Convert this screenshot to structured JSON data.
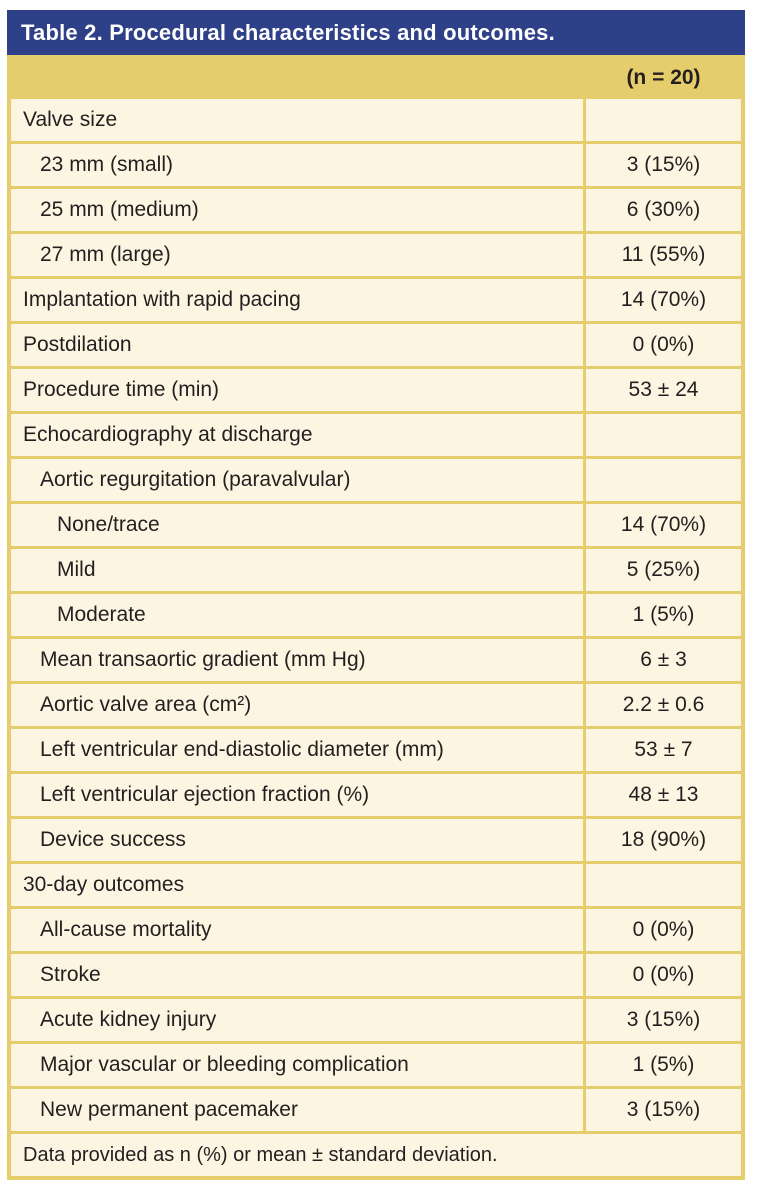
{
  "table": {
    "title": "Table 2. Procedural characteristics and outcomes.",
    "column_header": "(n = 20)",
    "rows": [
      {
        "label": "Valve size",
        "value": "",
        "indent": 0
      },
      {
        "label": "23 mm (small)",
        "value": "3 (15%)",
        "indent": 1
      },
      {
        "label": "25 mm (medium)",
        "value": "6 (30%)",
        "indent": 1
      },
      {
        "label": "27 mm (large)",
        "value": "11 (55%)",
        "indent": 1
      },
      {
        "label": "Implantation with rapid pacing",
        "value": "14 (70%)",
        "indent": 0
      },
      {
        "label": "Postdilation",
        "value": "0 (0%)",
        "indent": 0
      },
      {
        "label": "Procedure time (min)",
        "value": "53 ± 24",
        "indent": 0
      },
      {
        "label": "Echocardiography at discharge",
        "value": "",
        "indent": 0
      },
      {
        "label": "Aortic regurgitation (paravalvular)",
        "value": "",
        "indent": 1
      },
      {
        "label": "None/trace",
        "value": "14 (70%)",
        "indent": 2
      },
      {
        "label": "Mild",
        "value": "5 (25%)",
        "indent": 2
      },
      {
        "label": "Moderate",
        "value": "1 (5%)",
        "indent": 2
      },
      {
        "label": "Mean transaortic gradient (mm Hg)",
        "value": "6 ± 3",
        "indent": 1
      },
      {
        "label": "Aortic valve area (cm²)",
        "value": "2.2 ± 0.6",
        "indent": 1
      },
      {
        "label": "Left ventricular end-diastolic diameter (mm)",
        "value": "53 ± 7",
        "indent": 1
      },
      {
        "label": "Left ventricular ejection fraction (%)",
        "value": "48 ± 13",
        "indent": 1
      },
      {
        "label": "Device success",
        "value": "18 (90%)",
        "indent": 1
      },
      {
        "label": "30-day outcomes",
        "value": "",
        "indent": 0
      },
      {
        "label": "All-cause mortality",
        "value": "0 (0%)",
        "indent": 1
      },
      {
        "label": "Stroke",
        "value": "0 (0%)",
        "indent": 1
      },
      {
        "label": "Acute kidney injury",
        "value": "3 (15%)",
        "indent": 1
      },
      {
        "label": "Major vascular or bleeding complication",
        "value": "1 (5%)",
        "indent": 1
      },
      {
        "label": "New permanent pacemaker",
        "value": "3 (15%)",
        "indent": 1
      }
    ],
    "footnote": "Data provided as n (%) or mean ± standard deviation."
  },
  "colors": {
    "header_bg": "#2e4088",
    "title_text": "#ffffff",
    "border": "#e6cd6b",
    "header_row_bg": "#e6cd6b",
    "row_bg": "#fcf5e1",
    "text": "#231f20"
  }
}
